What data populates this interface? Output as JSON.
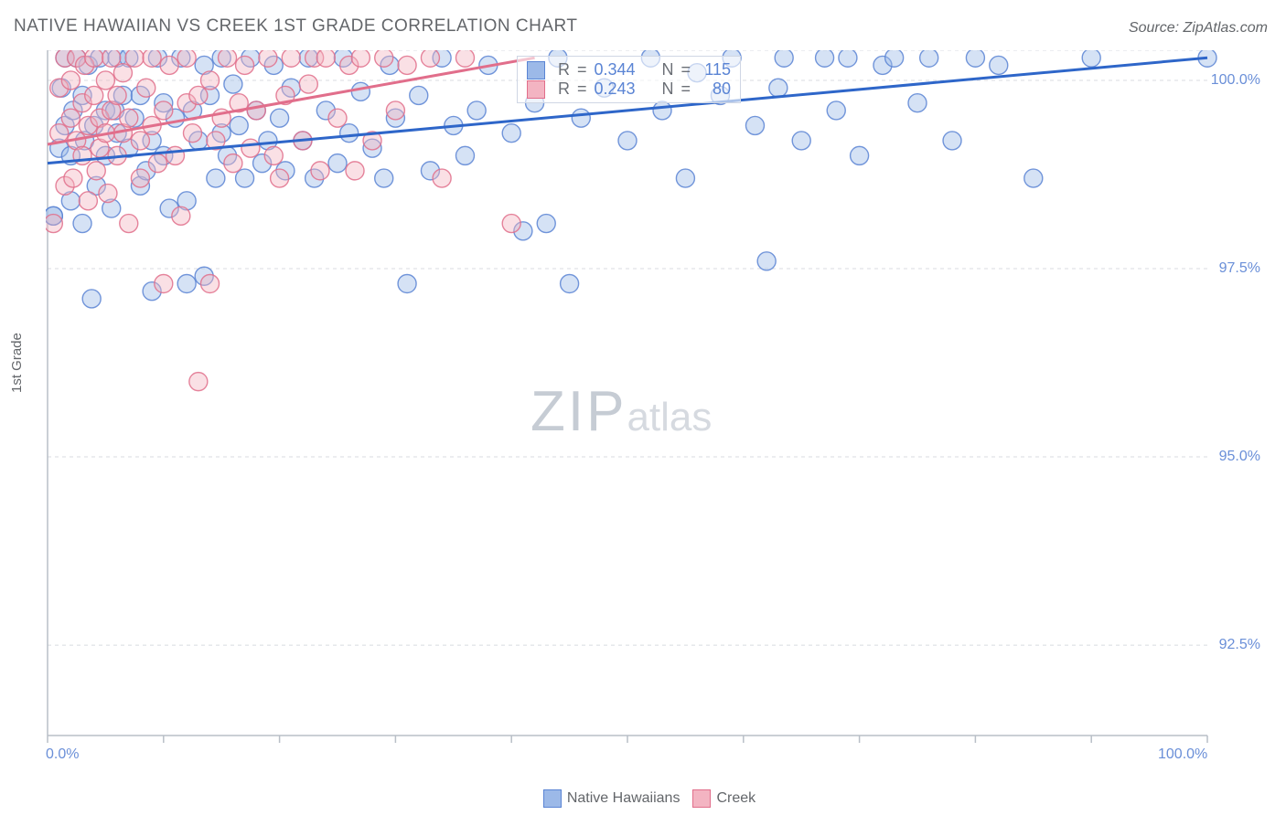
{
  "title": "NATIVE HAWAIIAN VS CREEK 1ST GRADE CORRELATION CHART",
  "source": "Source: ZipAtlas.com",
  "ylabel": "1st Grade",
  "watermark_zip": "ZIP",
  "watermark_atlas": "atlas",
  "chart": {
    "type": "scatter",
    "xlim": [
      0,
      100
    ],
    "ylim": [
      91.3,
      100.4
    ],
    "x_ticks": [
      0,
      10,
      20,
      30,
      40,
      50,
      60,
      70,
      80,
      90,
      100
    ],
    "x_tick_labels_shown": {
      "0": "0.0%",
      "100": "100.0%"
    },
    "y_gridlines": [
      92.5,
      95.0,
      97.5,
      100.0
    ],
    "y_tick_labels": {
      "92.5": "92.5%",
      "95.0": "95.0%",
      "97.5": "97.5%",
      "100.0": "100.0%"
    },
    "grid_color": "#d8dbe0",
    "grid_dash": "4,4",
    "axis_color": "#b9bfc7",
    "background_color": "#ffffff",
    "point_radius": 10,
    "point_opacity": 0.42,
    "point_stroke_opacity": 0.85,
    "series": [
      {
        "name": "Native Hawaiians",
        "fill": "#9cb9e8",
        "stroke": "#5a84d4",
        "line_color": "#2e66c9",
        "line_width": 3,
        "trend": {
          "x1": 0,
          "y1": 98.9,
          "x2": 100,
          "y2": 100.3
        },
        "R": "0.344",
        "N": "115",
        "points": [
          [
            0.5,
            98.2
          ],
          [
            0.5,
            98.2
          ],
          [
            1,
            99.1
          ],
          [
            1.2,
            99.9
          ],
          [
            1.5,
            99.4
          ],
          [
            1.5,
            100.3
          ],
          [
            2,
            98.4
          ],
          [
            2,
            99.0
          ],
          [
            2.2,
            99.6
          ],
          [
            2.5,
            100.3
          ],
          [
            3,
            98.1
          ],
          [
            3,
            99.8
          ],
          [
            3.2,
            99.2
          ],
          [
            3.5,
            100.2
          ],
          [
            3.8,
            97.1
          ],
          [
            4,
            99.4
          ],
          [
            4.2,
            98.6
          ],
          [
            4.5,
            100.3
          ],
          [
            5,
            99.0
          ],
          [
            5,
            99.6
          ],
          [
            5.5,
            98.3
          ],
          [
            5.8,
            99.6
          ],
          [
            6,
            99.3
          ],
          [
            6,
            100.3
          ],
          [
            6.5,
            99.8
          ],
          [
            7,
            99.1
          ],
          [
            7,
            100.3
          ],
          [
            7.5,
            99.5
          ],
          [
            8,
            98.6
          ],
          [
            8,
            99.8
          ],
          [
            8.5,
            98.8
          ],
          [
            9,
            97.2
          ],
          [
            9,
            99.2
          ],
          [
            9.5,
            100.3
          ],
          [
            10,
            99.7
          ],
          [
            10,
            99.0
          ],
          [
            10.5,
            98.3
          ],
          [
            11,
            99.5
          ],
          [
            11.5,
            100.3
          ],
          [
            12,
            98.4
          ],
          [
            12,
            97.3
          ],
          [
            12.5,
            99.6
          ],
          [
            13,
            99.2
          ],
          [
            13.5,
            100.2
          ],
          [
            13.5,
            97.4
          ],
          [
            14,
            99.8
          ],
          [
            14.5,
            98.7
          ],
          [
            15,
            99.3
          ],
          [
            15,
            100.3
          ],
          [
            15.5,
            99.0
          ],
          [
            16,
            99.95
          ],
          [
            16.5,
            99.4
          ],
          [
            17,
            98.7
          ],
          [
            17.5,
            100.3
          ],
          [
            18,
            99.6
          ],
          [
            18.5,
            98.9
          ],
          [
            19,
            99.2
          ],
          [
            19.5,
            100.2
          ],
          [
            20,
            99.5
          ],
          [
            20.5,
            98.8
          ],
          [
            21,
            99.9
          ],
          [
            22,
            99.2
          ],
          [
            22.5,
            100.3
          ],
          [
            23,
            98.7
          ],
          [
            24,
            99.6
          ],
          [
            25,
            98.9
          ],
          [
            25.5,
            100.3
          ],
          [
            26,
            99.3
          ],
          [
            27,
            99.85
          ],
          [
            28,
            99.1
          ],
          [
            29,
            98.7
          ],
          [
            29.5,
            100.2
          ],
          [
            30,
            99.5
          ],
          [
            31,
            97.3
          ],
          [
            32,
            99.8
          ],
          [
            33,
            98.8
          ],
          [
            34,
            100.3
          ],
          [
            35,
            99.4
          ],
          [
            36,
            99.0
          ],
          [
            37,
            99.6
          ],
          [
            38,
            100.2
          ],
          [
            40,
            99.3
          ],
          [
            41,
            98.0
          ],
          [
            42,
            99.7
          ],
          [
            43,
            98.1
          ],
          [
            44,
            100.3
          ],
          [
            45,
            97.3
          ],
          [
            46,
            99.5
          ],
          [
            48,
            99.9
          ],
          [
            50,
            99.2
          ],
          [
            52,
            100.3
          ],
          [
            53,
            99.6
          ],
          [
            55,
            98.7
          ],
          [
            56,
            100.1
          ],
          [
            58,
            99.8
          ],
          [
            59,
            100.3
          ],
          [
            61,
            99.4
          ],
          [
            62,
            97.6
          ],
          [
            63,
            99.9
          ],
          [
            63.5,
            100.3
          ],
          [
            65,
            99.2
          ],
          [
            67,
            100.3
          ],
          [
            68,
            99.6
          ],
          [
            69,
            100.3
          ],
          [
            70,
            99.0
          ],
          [
            72,
            100.2
          ],
          [
            73,
            100.3
          ],
          [
            75,
            99.7
          ],
          [
            76,
            100.3
          ],
          [
            78,
            99.2
          ],
          [
            80,
            100.3
          ],
          [
            82,
            100.2
          ],
          [
            85,
            98.7
          ],
          [
            90,
            100.3
          ],
          [
            100,
            100.3
          ]
        ]
      },
      {
        "name": "Creek",
        "fill": "#f3b4c2",
        "stroke": "#e16e8b",
        "line_color": "#e16e8b",
        "line_width": 3,
        "trend": {
          "x1": 0,
          "y1": 99.15,
          "x2": 42,
          "y2": 100.3
        },
        "R": "0.243",
        "N": "80",
        "points": [
          [
            0.5,
            98.1
          ],
          [
            1,
            99.3
          ],
          [
            1,
            99.9
          ],
          [
            1.5,
            98.6
          ],
          [
            1.5,
            100.3
          ],
          [
            2,
            99.5
          ],
          [
            2,
            100.0
          ],
          [
            2.2,
            98.7
          ],
          [
            2.5,
            99.2
          ],
          [
            2.5,
            100.3
          ],
          [
            3,
            99.0
          ],
          [
            3,
            99.7
          ],
          [
            3.2,
            100.2
          ],
          [
            3.5,
            98.4
          ],
          [
            3.5,
            99.4
          ],
          [
            4,
            99.8
          ],
          [
            4,
            100.3
          ],
          [
            4.2,
            98.8
          ],
          [
            4.5,
            99.1
          ],
          [
            4.5,
            99.5
          ],
          [
            5,
            100.0
          ],
          [
            5,
            99.3
          ],
          [
            5.2,
            98.5
          ],
          [
            5.5,
            99.6
          ],
          [
            5.5,
            100.3
          ],
          [
            6,
            99.0
          ],
          [
            6,
            99.8
          ],
          [
            6.5,
            99.3
          ],
          [
            6.5,
            100.1
          ],
          [
            7,
            98.1
          ],
          [
            7,
            99.5
          ],
          [
            7.5,
            100.3
          ],
          [
            8,
            99.2
          ],
          [
            8,
            98.7
          ],
          [
            8.5,
            99.9
          ],
          [
            9,
            99.4
          ],
          [
            9,
            100.3
          ],
          [
            9.5,
            98.9
          ],
          [
            10,
            97.3
          ],
          [
            10,
            99.6
          ],
          [
            10.5,
            100.2
          ],
          [
            11,
            99.0
          ],
          [
            11.5,
            98.2
          ],
          [
            12,
            99.7
          ],
          [
            12,
            100.3
          ],
          [
            12.5,
            99.3
          ],
          [
            13,
            96.0
          ],
          [
            13,
            99.8
          ],
          [
            14,
            97.3
          ],
          [
            14,
            100.0
          ],
          [
            14.5,
            99.2
          ],
          [
            15,
            99.5
          ],
          [
            15.5,
            100.3
          ],
          [
            16,
            98.9
          ],
          [
            16.5,
            99.7
          ],
          [
            17,
            100.2
          ],
          [
            17.5,
            99.1
          ],
          [
            18,
            99.6
          ],
          [
            19,
            100.3
          ],
          [
            19.5,
            99.0
          ],
          [
            20,
            98.7
          ],
          [
            20.5,
            99.8
          ],
          [
            21,
            100.3
          ],
          [
            22,
            99.2
          ],
          [
            22.5,
            99.95
          ],
          [
            23,
            100.3
          ],
          [
            23.5,
            98.8
          ],
          [
            24,
            100.3
          ],
          [
            25,
            99.5
          ],
          [
            26,
            100.2
          ],
          [
            26.5,
            98.8
          ],
          [
            27,
            100.3
          ],
          [
            28,
            99.2
          ],
          [
            29,
            100.3
          ],
          [
            30,
            99.6
          ],
          [
            31,
            100.2
          ],
          [
            33,
            100.3
          ],
          [
            34,
            98.7
          ],
          [
            36,
            100.3
          ],
          [
            40,
            98.1
          ]
        ]
      }
    ]
  },
  "stats_legend": {
    "rows": [
      {
        "swatch_fill": "#9cb9e8",
        "swatch_stroke": "#5a84d4",
        "R": "0.344",
        "N": "115"
      },
      {
        "swatch_fill": "#f3b4c2",
        "swatch_stroke": "#e16e8b",
        "R": "0.243",
        "N": "80"
      }
    ],
    "R_label": "R",
    "N_label": "N",
    "eq": "="
  },
  "footer_legend": {
    "items": [
      {
        "swatch_fill": "#9cb9e8",
        "swatch_stroke": "#5a84d4",
        "label": "Native Hawaiians"
      },
      {
        "swatch_fill": "#f3b4c2",
        "swatch_stroke": "#e16e8b",
        "label": "Creek"
      }
    ]
  }
}
